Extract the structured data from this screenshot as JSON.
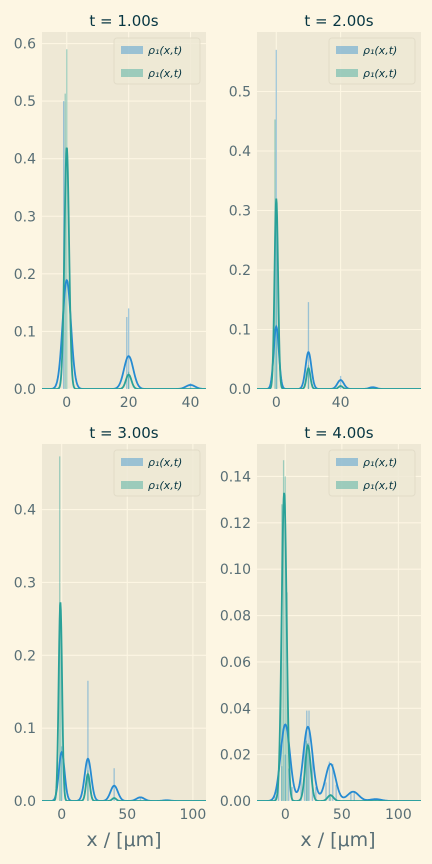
{
  "colors": {
    "background": "#fdf6e3",
    "panel": "#eee8d5",
    "grid": "#fdf6e3",
    "tick_text": "#586e75",
    "title_text": "#073642",
    "blue": "#268bd2",
    "teal": "#2aa198"
  },
  "legend_labels": [
    "ρ₁(x,t)",
    "ρ₁(x,t)"
  ],
  "xlabel": "x / [μm]",
  "chart_data": [
    {
      "type": "bar",
      "title": "t = 1.00s",
      "legend_position": "top-right",
      "xlim": [
        -8,
        45
      ],
      "ylim": [
        0,
        0.62
      ],
      "xticks": [
        0,
        20,
        40
      ],
      "yticks": [
        0.0,
        0.1,
        0.2,
        0.3,
        0.4,
        0.5,
        0.6
      ],
      "ytick_labels": [
        "0.0",
        "0.1",
        "0.2",
        "0.3",
        "0.4",
        "0.5",
        "0.6"
      ],
      "series": [
        {
          "color": "blue",
          "bars": [
            {
              "x": -1,
              "y": 0.5
            },
            {
              "x": 19.4,
              "y": 0.125
            },
            {
              "x": 20,
              "y": 0.14
            },
            {
              "x": 40,
              "y": 0.01
            }
          ],
          "kde": [
            {
              "mu": 0,
              "sigma": 1.35,
              "amp": 0.189
            },
            {
              "mu": 20,
              "sigma": 1.5,
              "amp": 0.057
            },
            {
              "mu": 40,
              "sigma": 1.5,
              "amp": 0.007
            }
          ]
        },
        {
          "color": "teal",
          "bars": [
            {
              "x": -0.5,
              "y": 0.513
            },
            {
              "x": 0,
              "y": 0.59
            },
            {
              "x": 20,
              "y": 0.03
            }
          ],
          "kde": [
            {
              "mu": 0,
              "sigma": 0.75,
              "amp": 0.42
            },
            {
              "mu": 20,
              "sigma": 0.9,
              "amp": 0.025
            }
          ]
        }
      ]
    },
    {
      "type": "bar",
      "title": "t = 2.00s",
      "legend_position": "top-right",
      "xlim": [
        -12,
        90
      ],
      "ylim": [
        0,
        0.6
      ],
      "xticks": [
        0,
        40
      ],
      "yticks": [
        0.0,
        0.1,
        0.2,
        0.3,
        0.4,
        0.5
      ],
      "ytick_labels": [
        "0.0",
        "0.1",
        "0.2",
        "0.3",
        "0.4",
        "0.5"
      ],
      "series": [
        {
          "color": "blue",
          "bars": [
            {
              "x": 0,
              "y": 0.57
            },
            {
              "x": 20,
              "y": 0.146
            },
            {
              "x": 40,
              "y": 0.022
            }
          ],
          "kde": [
            {
              "mu": 0,
              "sigma": 1.6,
              "amp": 0.105
            },
            {
              "mu": 20,
              "sigma": 1.8,
              "amp": 0.062
            },
            {
              "mu": 40,
              "sigma": 2.0,
              "amp": 0.015
            },
            {
              "mu": 60,
              "sigma": 2.2,
              "amp": 0.003
            }
          ]
        },
        {
          "color": "teal",
          "bars": [
            {
              "x": -0.8,
              "y": 0.453
            },
            {
              "x": 0.3,
              "y": 0.3
            },
            {
              "x": 20,
              "y": 0.04
            }
          ],
          "kde": [
            {
              "mu": 0,
              "sigma": 1.1,
              "amp": 0.32
            },
            {
              "mu": 20,
              "sigma": 1.2,
              "amp": 0.035
            },
            {
              "mu": 40,
              "sigma": 1.3,
              "amp": 0.005
            }
          ]
        }
      ]
    },
    {
      "type": "bar",
      "title": "t = 3.00s",
      "legend_position": "top-right",
      "xlim": [
        -15,
        110
      ],
      "ylim": [
        0,
        0.49
      ],
      "xticks": [
        0,
        50,
        100
      ],
      "yticks": [
        0.0,
        0.1,
        0.2,
        0.3,
        0.4
      ],
      "ytick_labels": [
        "0.0",
        "0.1",
        "0.2",
        "0.3",
        "0.4"
      ],
      "series": [
        {
          "color": "blue",
          "bars": [
            {
              "x": 0,
              "y": 0.075
            },
            {
              "x": 20,
              "y": 0.165
            },
            {
              "x": 40,
              "y": 0.045
            },
            {
              "x": 60,
              "y": 0.006
            }
          ],
          "kde": [
            {
              "mu": 0,
              "sigma": 2.2,
              "amp": 0.067
            },
            {
              "mu": 20,
              "sigma": 2.5,
              "amp": 0.058
            },
            {
              "mu": 40,
              "sigma": 2.8,
              "amp": 0.021
            },
            {
              "mu": 60,
              "sigma": 3.0,
              "amp": 0.005
            },
            {
              "mu": 80,
              "sigma": 3.0,
              "amp": 0.001
            }
          ]
        },
        {
          "color": "teal",
          "bars": [
            {
              "x": -1.5,
              "y": 0.473
            },
            {
              "x": -0.5,
              "y": 0.25
            },
            {
              "x": 20,
              "y": 0.042
            }
          ],
          "kde": [
            {
              "mu": -1,
              "sigma": 1.3,
              "amp": 0.273
            },
            {
              "mu": 20,
              "sigma": 1.5,
              "amp": 0.037
            },
            {
              "mu": 40,
              "sigma": 1.6,
              "amp": 0.004
            }
          ]
        }
      ]
    },
    {
      "type": "bar",
      "title": "t = 4.00s",
      "legend_position": "top-right",
      "xlim": [
        -25,
        120
      ],
      "ylim": [
        0,
        0.154
      ],
      "xticks": [
        0,
        50,
        100
      ],
      "yticks": [
        0.0,
        0.02,
        0.04,
        0.06,
        0.08,
        0.1,
        0.12,
        0.14
      ],
      "ytick_labels": [
        "0.00",
        "0.02",
        "0.04",
        "0.06",
        "0.08",
        "0.10",
        "0.12",
        "0.14"
      ],
      "series": [
        {
          "color": "blue",
          "bars": [
            {
              "x": -9,
              "y": 0.002
            },
            {
              "x": -6,
              "y": 0.008
            },
            {
              "x": -3,
              "y": 0.015
            },
            {
              "x": 0,
              "y": 0.02
            },
            {
              "x": 3,
              "y": 0.014
            },
            {
              "x": 6,
              "y": 0.006
            },
            {
              "x": 14,
              "y": 0.01
            },
            {
              "x": 17,
              "y": 0.025
            },
            {
              "x": 19,
              "y": 0.039
            },
            {
              "x": 21,
              "y": 0.039
            },
            {
              "x": 24,
              "y": 0.02
            },
            {
              "x": 27,
              "y": 0.006
            },
            {
              "x": 36,
              "y": 0.008
            },
            {
              "x": 39,
              "y": 0.017
            },
            {
              "x": 42,
              "y": 0.016
            },
            {
              "x": 45,
              "y": 0.007
            },
            {
              "x": 58,
              "y": 0.004
            },
            {
              "x": 61,
              "y": 0.004
            },
            {
              "x": 80,
              "y": 0.001
            }
          ],
          "kde": [
            {
              "mu": 0,
              "sigma": 4.2,
              "amp": 0.033
            },
            {
              "mu": 20,
              "sigma": 4.2,
              "amp": 0.032
            },
            {
              "mu": 40,
              "sigma": 4.5,
              "amp": 0.016
            },
            {
              "mu": 60,
              "sigma": 5.0,
              "amp": 0.004
            },
            {
              "mu": 80,
              "sigma": 5.0,
              "amp": 0.0008
            }
          ]
        },
        {
          "color": "teal",
          "bars": [
            {
              "x": -3,
              "y": 0.128
            },
            {
              "x": -1.5,
              "y": 0.147
            },
            {
              "x": 0,
              "y": 0.14
            },
            {
              "x": 1.5,
              "y": 0.09
            },
            {
              "x": 18.5,
              "y": 0.026
            },
            {
              "x": 20,
              "y": 0.025
            },
            {
              "x": 40,
              "y": 0.003
            }
          ],
          "kde": [
            {
              "mu": -1,
              "sigma": 2.2,
              "amp": 0.133
            },
            {
              "mu": 20,
              "sigma": 2.5,
              "amp": 0.024
            },
            {
              "mu": 40,
              "sigma": 2.6,
              "amp": 0.0025
            }
          ]
        }
      ]
    }
  ]
}
